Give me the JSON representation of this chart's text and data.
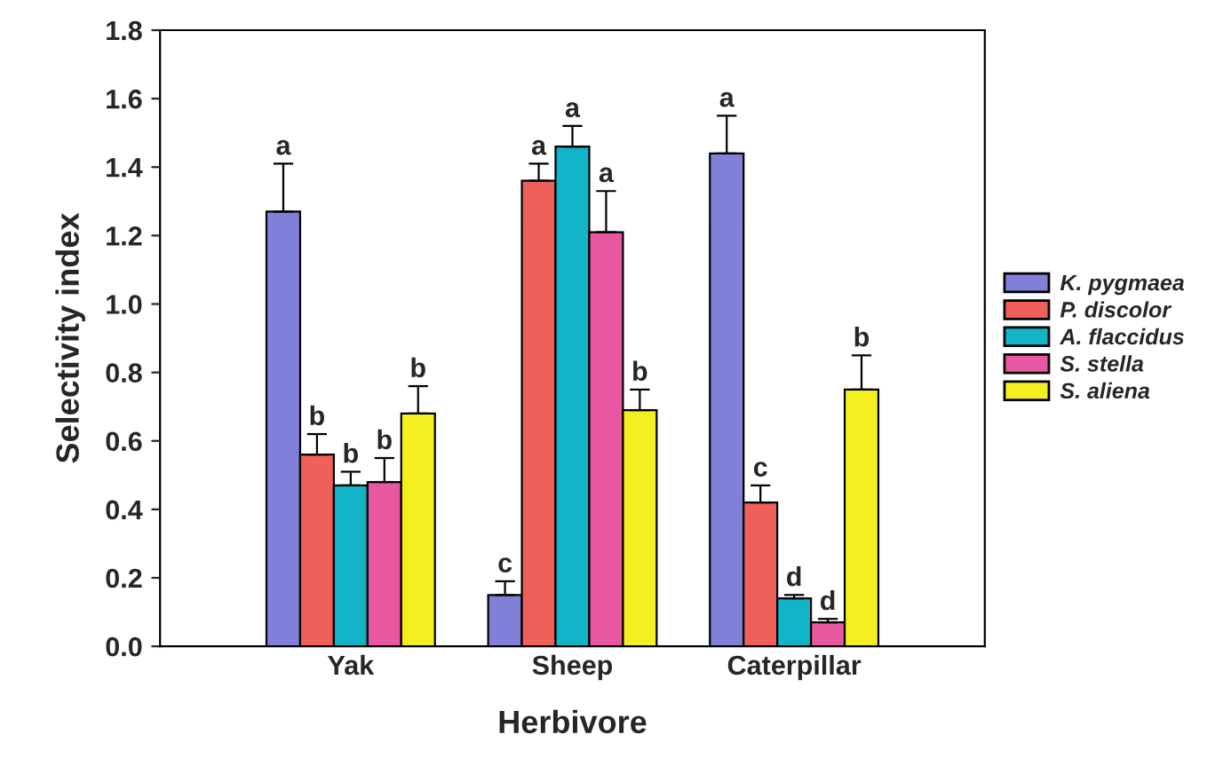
{
  "chart_data": {
    "type": "bar",
    "xlabel": "Herbivore",
    "ylabel": "Selectivity index",
    "categories": [
      "Yak",
      "Sheep",
      "Caterpillar"
    ],
    "series": [
      {
        "name": "K. pygmaea",
        "color": "#8080d8",
        "values": [
          1.27,
          0.15,
          1.44
        ],
        "errors": [
          0.14,
          0.04,
          0.11
        ],
        "value_labels": [
          "a",
          "c",
          "a"
        ]
      },
      {
        "name": "P. discolor",
        "color": "#f0605a",
        "values": [
          0.56,
          1.36,
          0.42
        ],
        "errors": [
          0.06,
          0.05,
          0.05
        ],
        "value_labels": [
          "b",
          "a",
          "c"
        ]
      },
      {
        "name": "A. flaccidus",
        "color": "#12b4c8",
        "values": [
          0.47,
          1.46,
          0.14
        ],
        "errors": [
          0.04,
          0.06,
          0.01
        ],
        "value_labels": [
          "b",
          "a",
          "d"
        ]
      },
      {
        "name": "S. stella",
        "color": "#e858a0",
        "values": [
          0.48,
          1.21,
          0.07
        ],
        "errors": [
          0.07,
          0.12,
          0.01
        ],
        "value_labels": [
          "b",
          "a",
          "d"
        ]
      },
      {
        "name": "S. aliena",
        "color": "#f4f020",
        "values": [
          0.68,
          0.69,
          0.75
        ],
        "errors": [
          0.08,
          0.06,
          0.1
        ],
        "value_labels": [
          "b",
          "b",
          "b"
        ]
      }
    ],
    "ylim": [
      0,
      1.8
    ],
    "yticks": [
      {
        "value": 0,
        "label": "0.0"
      },
      {
        "value": 0.2,
        "label": "0.2"
      },
      {
        "value": 0.4,
        "label": "0.4"
      },
      {
        "value": 0.6,
        "label": "0.6"
      },
      {
        "value": 0.8,
        "label": "0.8"
      },
      {
        "value": 1.0,
        "label": "1.0"
      },
      {
        "value": 1.2,
        "label": "1.2"
      },
      {
        "value": 1.4,
        "label": "1.4"
      },
      {
        "value": 1.6,
        "label": "1.6"
      },
      {
        "value": 1.8,
        "label": "1.8"
      }
    ],
    "grid": false,
    "legend": "right"
  }
}
